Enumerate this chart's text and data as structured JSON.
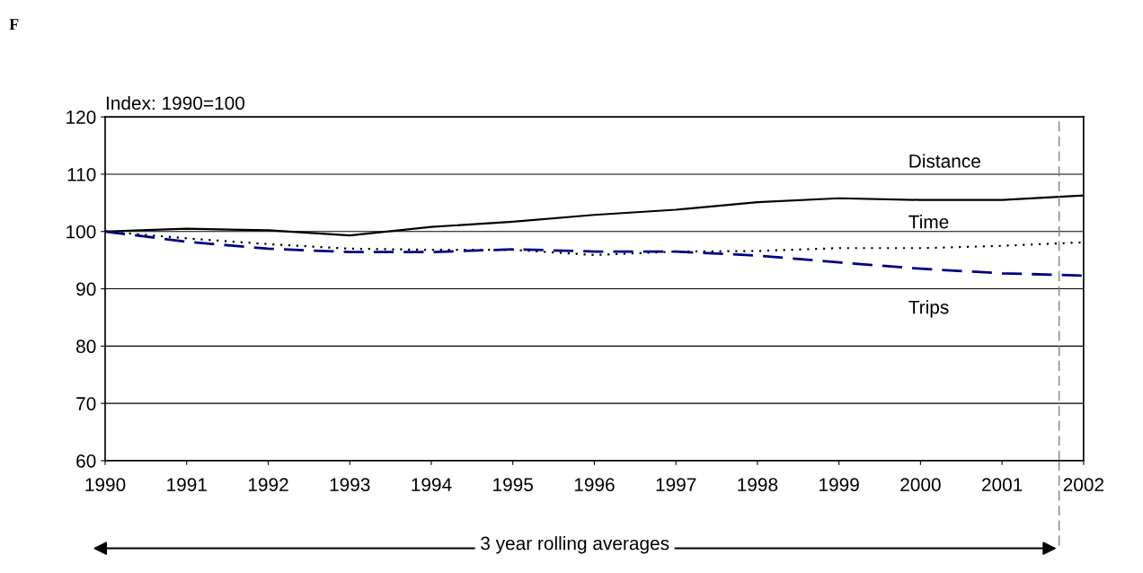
{
  "chart_data": {
    "type": "line",
    "ylabel": "Index: 1990=100",
    "x": [
      1990,
      1991,
      1992,
      1993,
      1994,
      1995,
      1996,
      1997,
      1998,
      1999,
      2000,
      2001,
      2002
    ],
    "series": [
      {
        "name": "Distance",
        "color": "#000000",
        "line_style": "solid",
        "values": [
          100,
          100.5,
          100.2,
          99.3,
          100.8,
          101.7,
          102.9,
          103.8,
          105.1,
          105.8,
          105.5,
          105.5,
          106.3
        ]
      },
      {
        "name": "Time",
        "color": "#000000",
        "line_style": "dotted",
        "values": [
          100,
          98.8,
          97.8,
          97.0,
          96.8,
          96.8,
          95.9,
          96.5,
          96.6,
          97.1,
          97.1,
          97.5,
          98.1
        ]
      },
      {
        "name": "Trips",
        "color": "#000080",
        "line_style": "dashed",
        "values": [
          100,
          98.2,
          97.0,
          96.4,
          96.4,
          96.9,
          96.5,
          96.5,
          95.8,
          94.6,
          93.5,
          92.7,
          92.3
        ]
      }
    ],
    "xlim": [
      1990,
      2002
    ],
    "xticks": [
      1990,
      1991,
      1992,
      1993,
      1994,
      1995,
      1996,
      1997,
      1998,
      1999,
      2000,
      2001,
      2002
    ],
    "ylim": [
      60,
      120
    ],
    "yticks": [
      60,
      70,
      80,
      90,
      100,
      110,
      120
    ],
    "grid": "y",
    "marker": "none",
    "ref_lines": [
      {
        "axis": "x",
        "value": 2001.7,
        "color": "#808080",
        "line_style": "dashed"
      }
    ],
    "annotations": [
      "F",
      "3 year rolling averages"
    ]
  }
}
